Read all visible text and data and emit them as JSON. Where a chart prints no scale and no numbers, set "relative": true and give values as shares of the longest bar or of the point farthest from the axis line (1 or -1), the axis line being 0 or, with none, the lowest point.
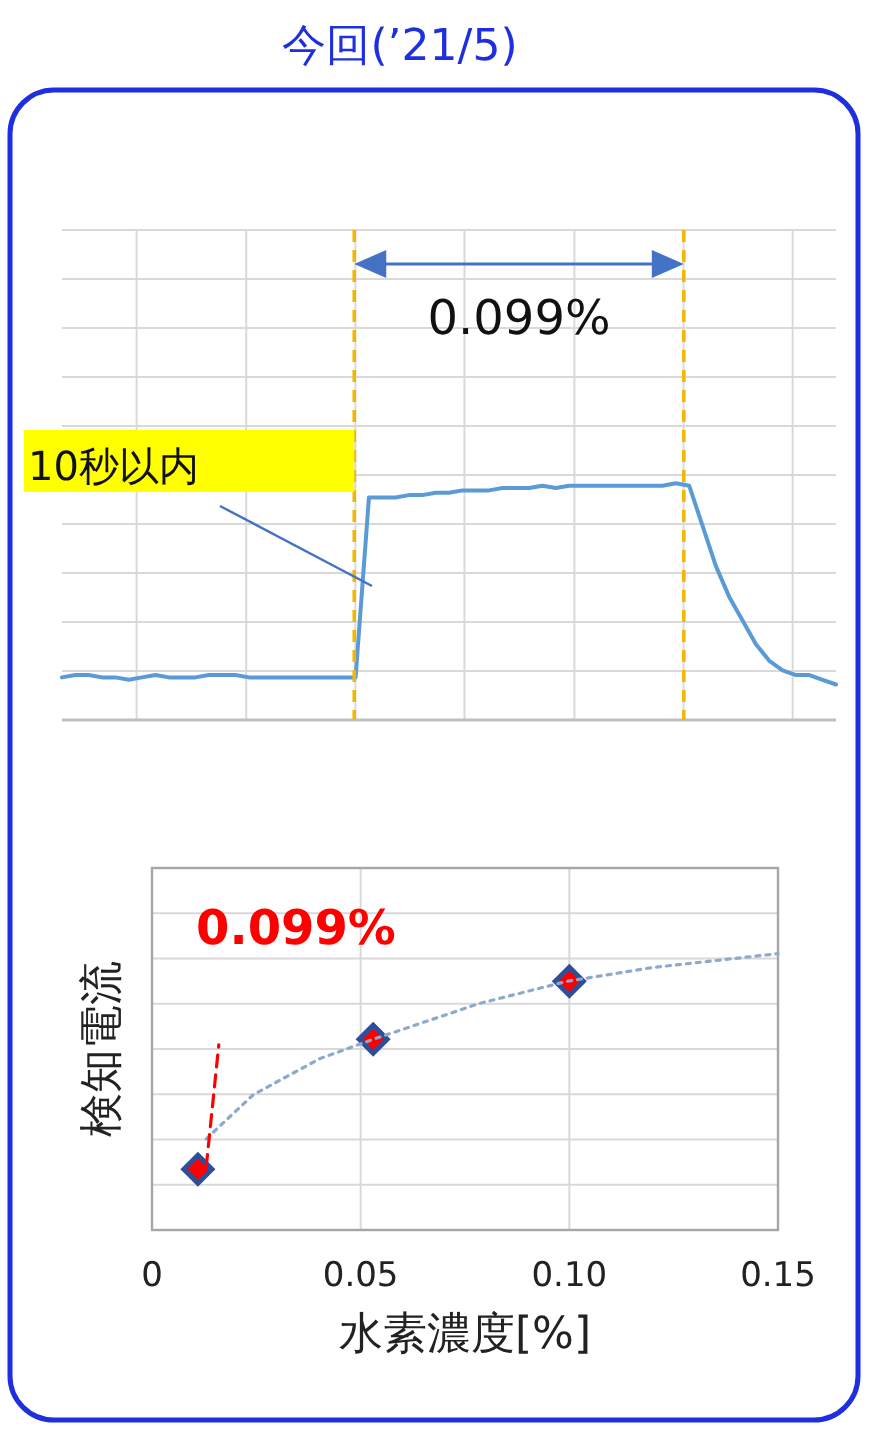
{
  "chart_data": [
    {
      "type": "line",
      "title": "今回(’21/5)",
      "relative": true,
      "grid": true,
      "categories": [
        null,
        null,
        null,
        null,
        null,
        null,
        null,
        null,
        null,
        null,
        null,
        null,
        null,
        null,
        null,
        null,
        null,
        null,
        null,
        null,
        null,
        null,
        null,
        null,
        null,
        null,
        null,
        null,
        null,
        null,
        null,
        null,
        null,
        null,
        null,
        null,
        null,
        null,
        null,
        null,
        null,
        null,
        null,
        null,
        null,
        null,
        null,
        null,
        null,
        null,
        null,
        null,
        null,
        null,
        null,
        null,
        null,
        null,
        null
      ],
      "series": [
        {
          "color": "#5b9bd5",
          "values": [
            0.18,
            0.19,
            0.19,
            0.18,
            0.18,
            0.17,
            0.18,
            0.19,
            0.18,
            0.18,
            0.18,
            0.19,
            0.19,
            0.19,
            0.18,
            0.18,
            0.18,
            0.18,
            0.18,
            0.18,
            0.18,
            0.18,
            0.18,
            0.94,
            0.94,
            0.94,
            0.95,
            0.95,
            0.96,
            0.96,
            0.97,
            0.97,
            0.97,
            0.98,
            0.98,
            0.98,
            0.99,
            0.98,
            0.99,
            0.99,
            0.99,
            0.99,
            0.99,
            0.99,
            0.99,
            0.99,
            1,
            0.99,
            0.82,
            0.65,
            0.52,
            0.42,
            0.32,
            0.25,
            0.21,
            0.19,
            0.19,
            0.17,
            0.15
          ]
        }
      ],
      "annotations": [
        "10秒以内",
        "0.099%"
      ]
    },
    {
      "type": "scatter",
      "xlabel": "水素濃度[%]",
      "ylabel": "検知電流",
      "relative": true,
      "grid": true,
      "xlim": [
        0,
        0.15
      ],
      "xticks": [
        0,
        0.05,
        {
          "value": 0.1,
          "label": "0.10"
        },
        0.15
      ],
      "series": [
        {
          "color": "#ff0000",
          "marker": "diamond",
          "x": [
            0.011,
            0.053,
            0.1
          ],
          "values": [
            0.22,
            0.69,
            0.9
          ]
        },
        {
          "type": "line",
          "color": "#8eaacb",
          "line_style": "dotted",
          "marker": "none",
          "x": [
            0.013,
            0.0243,
            0.0402,
            0.053,
            0.0785,
            0.0995,
            0.12,
            0.15
          ],
          "values": [
            0.33,
            0.49,
            0.62,
            0.69,
            0.82,
            0.9,
            0.95,
            1
          ]
        },
        {
          "type": "line",
          "color": "#ff0000",
          "line_style": "dashed",
          "marker": "none",
          "x": [
            0.013,
            0.016
          ],
          "values": [
            0.23,
            0.67
          ]
        }
      ],
      "annotations": [
        "0.099%"
      ]
    }
  ]
}
